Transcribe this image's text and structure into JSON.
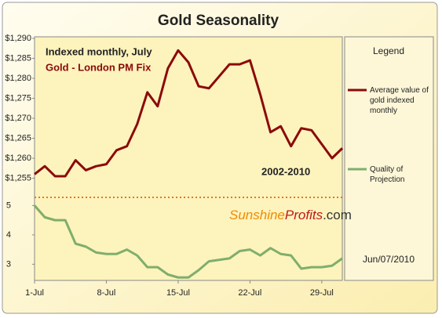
{
  "chart_data": [
    {
      "type": "line",
      "title": "Gold Seasonality",
      "subtitle": "Indexed monthly, July",
      "series_label": "Gold - London PM Fix",
      "period": "2002-2010",
      "legend_title": "Legend",
      "logo": [
        "Sunshine",
        "Profits",
        ".com"
      ],
      "date": "Jun/07/2010",
      "x": [
        1,
        2,
        3,
        4,
        5,
        6,
        7,
        8,
        9,
        10,
        11,
        12,
        13,
        14,
        15,
        16,
        17,
        18,
        19,
        20,
        21,
        22,
        23,
        24,
        25,
        26,
        27,
        28,
        29,
        30,
        31
      ],
      "xlim": [
        1,
        31
      ],
      "series": [
        {
          "name": "Average value of gold indexed monthly",
          "color": "#8b0a0a",
          "values": [
            1256,
            1258,
            1255.5,
            1255.5,
            1259.5,
            1257,
            1258,
            1258.5,
            1262,
            1263,
            1268.5,
            1276.5,
            1273,
            1282.5,
            1287,
            1284,
            1278,
            1277.5,
            1280.5,
            1283.5,
            1283.5,
            1284.5,
            1276,
            1266.5,
            1268,
            1263,
            1267.5,
            1267,
            1263.5,
            1260,
            1262.5
          ]
        }
      ],
      "ylim": [
        1250,
        1290
      ],
      "yticks": [
        {
          "value": 1255,
          "label": "$1,255"
        },
        {
          "value": 1260,
          "label": "$1,260"
        },
        {
          "value": 1265,
          "label": "$1,265"
        },
        {
          "value": 1270,
          "label": "$1,270"
        },
        {
          "value": 1275,
          "label": "$1,275"
        },
        {
          "value": 1280,
          "label": "$1,280"
        },
        {
          "value": 1285,
          "label": "$1,285"
        },
        {
          "value": 1290,
          "label": "$1,290"
        }
      ]
    },
    {
      "type": "line",
      "x": [
        1,
        2,
        3,
        4,
        5,
        6,
        7,
        8,
        9,
        10,
        11,
        12,
        13,
        14,
        15,
        16,
        17,
        18,
        19,
        20,
        21,
        22,
        23,
        24,
        25,
        26,
        27,
        28,
        29,
        30,
        31
      ],
      "xlim": [
        1,
        31
      ],
      "xticks": [
        {
          "value": 1,
          "label": "1-Jul"
        },
        {
          "value": 8,
          "label": "8-Jul"
        },
        {
          "value": 15,
          "label": "15-Jul"
        },
        {
          "value": 22,
          "label": "22-Jul"
        },
        {
          "value": 29,
          "label": "29-Jul"
        }
      ],
      "series": [
        {
          "name": "Quality of Projection",
          "color": "#7fae6c",
          "values": [
            5,
            4.6,
            4.5,
            4.5,
            3.7,
            3.6,
            3.4,
            3.35,
            3.35,
            3.5,
            3.3,
            2.9,
            2.9,
            2.65,
            2.55,
            2.55,
            2.8,
            3.1,
            3.15,
            3.2,
            3.45,
            3.5,
            3.3,
            3.55,
            3.35,
            3.3,
            2.85,
            2.9,
            2.9,
            2.95,
            3.2
          ]
        }
      ],
      "ylim": [
        2.45,
        5.25
      ],
      "yticks": [
        3,
        4,
        5
      ]
    }
  ]
}
